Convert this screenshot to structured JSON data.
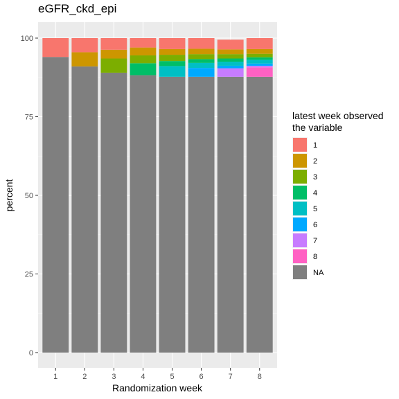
{
  "chart_data": {
    "type": "bar",
    "stacked": true,
    "title": "eGFR_ckd_epi",
    "xlabel": "Randomization week",
    "ylabel": "percent",
    "categories": [
      "1",
      "2",
      "3",
      "4",
      "5",
      "6",
      "7",
      "8"
    ],
    "ylim": [
      0,
      100
    ],
    "yticks": [
      0,
      25,
      50,
      75,
      100
    ],
    "grid": true,
    "legend": {
      "title_line1": "latest week observed",
      "title_line2": " the variable",
      "placement": "right"
    },
    "series": [
      {
        "name": "NA",
        "color": "#7F7F7F",
        "values": [
          94,
          91,
          89,
          88.2,
          87.7,
          87.7,
          87.7,
          87.7
        ]
      },
      {
        "name": "8",
        "color": "#FF61C3",
        "values": [
          0,
          0,
          0,
          0,
          0,
          0,
          0,
          3
        ]
      },
      {
        "name": "7",
        "color": "#C77CFF",
        "values": [
          0,
          0,
          0,
          0,
          0,
          0,
          2.7,
          0.5
        ]
      },
      {
        "name": "6",
        "color": "#00A9FF",
        "values": [
          0,
          0,
          0,
          0,
          0,
          2.8,
          0.8,
          0.7
        ]
      },
      {
        "name": "5",
        "color": "#00BFC4",
        "values": [
          0,
          0,
          0,
          0,
          3.4,
          1.6,
          1.3,
          1.2
        ]
      },
      {
        "name": "4",
        "color": "#00BE67",
        "values": [
          0,
          0,
          0,
          3.8,
          1.6,
          1.2,
          1,
          0.8
        ]
      },
      {
        "name": "3",
        "color": "#7CAE00",
        "values": [
          0,
          0,
          4.5,
          2.5,
          2,
          1.6,
          1.4,
          1.1
        ]
      },
      {
        "name": "2",
        "color": "#CD9600",
        "values": [
          0,
          4.5,
          2.8,
          2.5,
          1.8,
          1.7,
          1.5,
          1.5
        ]
      },
      {
        "name": "1",
        "color": "#F8766D",
        "values": [
          6,
          4.5,
          3.7,
          3,
          3.5,
          3.4,
          3.1,
          3.5
        ]
      }
    ],
    "legend_order": [
      "1",
      "2",
      "3",
      "4",
      "5",
      "6",
      "7",
      "8",
      "NA"
    ]
  }
}
